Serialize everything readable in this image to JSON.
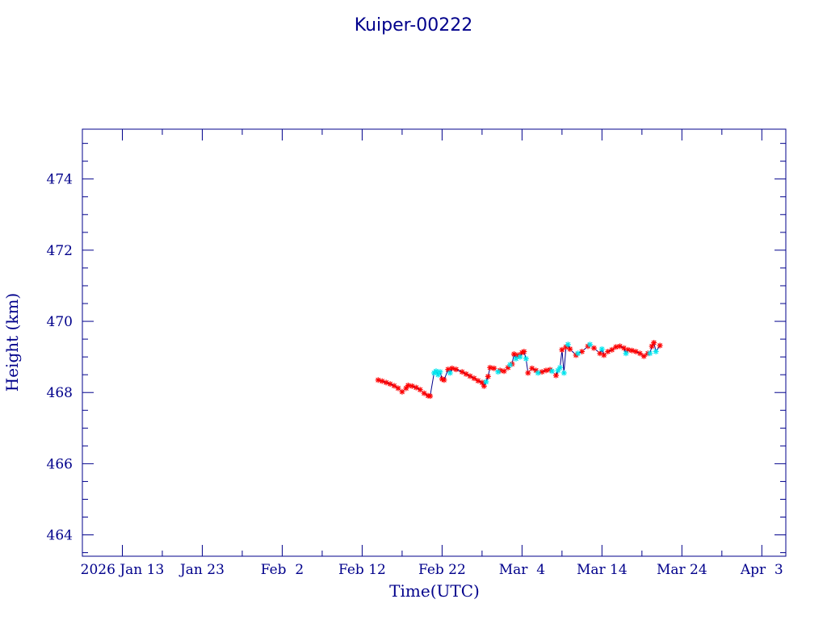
{
  "chart_data": {
    "type": "line",
    "title": "Kuiper-00222",
    "xlabel": "Time(UTC)",
    "ylabel": "Height (km)",
    "xlim": [
      "2026-01-08",
      "2026-04-06"
    ],
    "ylim": [
      463.4,
      475.4
    ],
    "x_ticks": [
      {
        "date": "2026-01-13",
        "label": "2026 Jan 13"
      },
      {
        "date": "2026-01-23",
        "label": "Jan 23"
      },
      {
        "date": "2026-02-02",
        "label": "Feb  2"
      },
      {
        "date": "2026-02-12",
        "label": "Feb 12"
      },
      {
        "date": "2026-02-22",
        "label": "Feb 22"
      },
      {
        "date": "2026-03-04",
        "label": "Mar  4"
      },
      {
        "date": "2026-03-14",
        "label": "Mar 14"
      },
      {
        "date": "2026-03-24",
        "label": "Mar 24"
      },
      {
        "date": "2026-04-03",
        "label": "Apr  3"
      }
    ],
    "y_ticks": [
      464,
      466,
      468,
      470,
      472,
      474
    ],
    "y_tick_labels": [
      "464",
      "466",
      "468",
      "470",
      "472",
      "474"
    ],
    "grid": false,
    "line_color": "#00008b",
    "series": [
      {
        "marker_color": "#ff0000",
        "points": [
          [
            "2026-02-14T00:00",
            468.35
          ],
          [
            "2026-02-14T12:00",
            468.32
          ],
          [
            "2026-02-15T00:00",
            468.28
          ],
          [
            "2026-02-15T12:00",
            468.24
          ],
          [
            "2026-02-16T00:00",
            468.19
          ],
          [
            "2026-02-16T12:00",
            468.12
          ],
          [
            "2026-02-17T00:00",
            468.02
          ],
          [
            "2026-02-17T12:00",
            468.12
          ],
          [
            "2026-02-17T18:00",
            468.2
          ],
          [
            "2026-02-18T06:00",
            468.18
          ],
          [
            "2026-02-18T18:00",
            468.14
          ],
          [
            "2026-02-19T06:00",
            468.08
          ],
          [
            "2026-02-19T18:00",
            467.98
          ],
          [
            "2026-02-20T06:00",
            467.91
          ],
          [
            "2026-02-20T12:00",
            467.9
          ],
          [
            "2026-02-22T00:00",
            468.38
          ],
          [
            "2026-02-22T06:00",
            468.35
          ],
          [
            "2026-02-22T18:00",
            468.65
          ],
          [
            "2026-02-23T06:00",
            468.68
          ],
          [
            "2026-02-23T18:00",
            468.65
          ],
          [
            "2026-02-24T12:00",
            468.58
          ],
          [
            "2026-02-25T00:00",
            468.52
          ],
          [
            "2026-02-25T12:00",
            468.46
          ],
          [
            "2026-02-26T00:00",
            468.4
          ],
          [
            "2026-02-26T12:00",
            468.33
          ],
          [
            "2026-02-27T00:00",
            468.28
          ],
          [
            "2026-02-27T06:00",
            468.18
          ],
          [
            "2026-02-27T18:00",
            468.45
          ],
          [
            "2026-02-28T00:00",
            468.7
          ],
          [
            "2026-02-28T12:00",
            468.68
          ],
          [
            "2026-03-01T06:00",
            468.62
          ],
          [
            "2026-03-01T18:00",
            468.6
          ],
          [
            "2026-03-02T06:00",
            468.7
          ],
          [
            "2026-03-02T18:00",
            468.8
          ],
          [
            "2026-03-03T00:00",
            469.08
          ],
          [
            "2026-03-03T12:00",
            469.05
          ],
          [
            "2026-03-04T00:00",
            469.12
          ],
          [
            "2026-03-04T06:00",
            469.15
          ],
          [
            "2026-03-04T18:00",
            468.55
          ],
          [
            "2026-03-05T06:00",
            468.68
          ],
          [
            "2026-03-05T18:00",
            468.62
          ],
          [
            "2026-03-06T12:00",
            468.58
          ],
          [
            "2026-03-07T00:00",
            468.62
          ],
          [
            "2026-03-07T12:00",
            468.64
          ],
          [
            "2026-03-08T06:00",
            468.48
          ],
          [
            "2026-03-09T00:00",
            469.2
          ],
          [
            "2026-03-09T12:00",
            469.28
          ],
          [
            "2026-03-10T00:00",
            469.22
          ],
          [
            "2026-03-10T18:00",
            469.05
          ],
          [
            "2026-03-11T12:00",
            469.15
          ],
          [
            "2026-03-12T06:00",
            469.3
          ],
          [
            "2026-03-13T00:00",
            469.25
          ],
          [
            "2026-03-13T18:00",
            469.1
          ],
          [
            "2026-03-14T06:00",
            469.05
          ],
          [
            "2026-03-14T18:00",
            469.15
          ],
          [
            "2026-03-15T06:00",
            469.2
          ],
          [
            "2026-03-15T18:00",
            469.28
          ],
          [
            "2026-03-16T06:00",
            469.3
          ],
          [
            "2026-03-16T18:00",
            469.25
          ],
          [
            "2026-03-17T06:00",
            469.2
          ],
          [
            "2026-03-17T18:00",
            469.18
          ],
          [
            "2026-03-18T06:00",
            469.15
          ],
          [
            "2026-03-18T18:00",
            469.1
          ],
          [
            "2026-03-19T06:00",
            469.02
          ],
          [
            "2026-03-19T18:00",
            469.1
          ],
          [
            "2026-03-20T06:00",
            469.3
          ],
          [
            "2026-03-20T12:00",
            469.4
          ],
          [
            "2026-03-21T06:00",
            469.32
          ]
        ]
      },
      {
        "marker_color": "#00e5ee",
        "points": [
          [
            "2026-02-21T00:00",
            468.55
          ],
          [
            "2026-02-21T06:00",
            468.6
          ],
          [
            "2026-02-21T12:00",
            468.5
          ],
          [
            "2026-02-21T18:00",
            468.58
          ],
          [
            "2026-02-23T00:00",
            468.55
          ],
          [
            "2026-02-27T12:00",
            468.3
          ],
          [
            "2026-03-01T00:00",
            468.58
          ],
          [
            "2026-03-02T12:00",
            468.78
          ],
          [
            "2026-03-03T06:00",
            468.95
          ],
          [
            "2026-03-03T18:00",
            469.0
          ],
          [
            "2026-03-04T12:00",
            468.95
          ],
          [
            "2026-03-06T00:00",
            468.55
          ],
          [
            "2026-03-07T18:00",
            468.6
          ],
          [
            "2026-03-08T12:00",
            468.62
          ],
          [
            "2026-03-08T18:00",
            468.7
          ],
          [
            "2026-03-09T06:00",
            468.55
          ],
          [
            "2026-03-09T18:00",
            469.35
          ],
          [
            "2026-03-11T00:00",
            469.1
          ],
          [
            "2026-03-12T12:00",
            469.35
          ],
          [
            "2026-03-14T00:00",
            469.22
          ],
          [
            "2026-03-17T00:00",
            469.1
          ],
          [
            "2026-03-20T00:00",
            469.1
          ],
          [
            "2026-03-20T18:00",
            469.15
          ]
        ]
      }
    ]
  }
}
